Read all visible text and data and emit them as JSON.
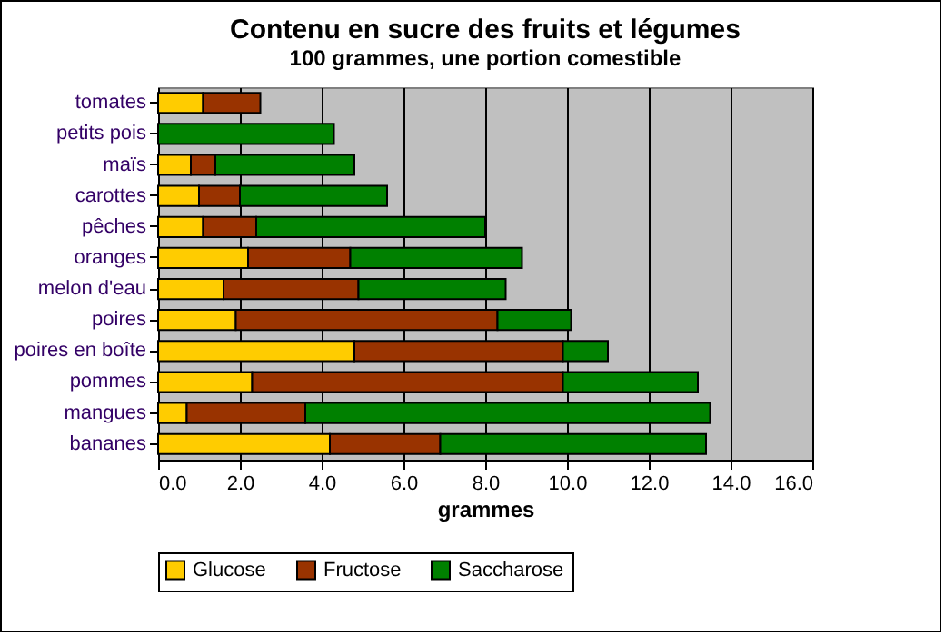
{
  "chart_data": {
    "type": "bar",
    "orientation": "horizontal",
    "stacked": true,
    "title": "Contenu en sucre des fruits et légumes",
    "subtitle": "100 grammes, une portion comestible",
    "xlabel": "grammes",
    "categories": [
      "tomates",
      "petits pois",
      "maïs",
      "carottes",
      "pêches",
      "oranges",
      "melon d'eau",
      "poires",
      "poires en boîte",
      "pommes",
      "mangues",
      "bananes"
    ],
    "series": [
      {
        "name": "Glucose",
        "color": "#ffcc00",
        "values": [
          1.1,
          0,
          0.8,
          1.0,
          1.1,
          2.2,
          1.6,
          1.9,
          4.8,
          2.3,
          0.7,
          4.2
        ]
      },
      {
        "name": "Fructose",
        "color": "#993300",
        "values": [
          1.4,
          0,
          0.6,
          1.0,
          1.3,
          2.5,
          3.3,
          6.4,
          5.1,
          7.6,
          2.9,
          2.7
        ]
      },
      {
        "name": "Saccharose",
        "color": "#008000",
        "values": [
          0,
          4.3,
          3.4,
          3.6,
          5.6,
          4.2,
          3.6,
          1.8,
          1.1,
          3.3,
          9.9,
          6.5
        ]
      }
    ],
    "xlim": [
      0,
      16
    ],
    "xticks": [
      {
        "value": 0,
        "label": "0.0"
      },
      {
        "value": 2,
        "label": "2.0"
      },
      {
        "value": 4,
        "label": "4.0"
      },
      {
        "value": 6,
        "label": "6.0"
      },
      {
        "value": 8,
        "label": "8.0"
      },
      {
        "value": 10,
        "label": "10.0"
      },
      {
        "value": 12,
        "label": "12.0"
      },
      {
        "value": 14,
        "label": "14.0"
      },
      {
        "value": 16,
        "label": "16.0"
      }
    ],
    "grid": "x",
    "legend": "bottom"
  }
}
